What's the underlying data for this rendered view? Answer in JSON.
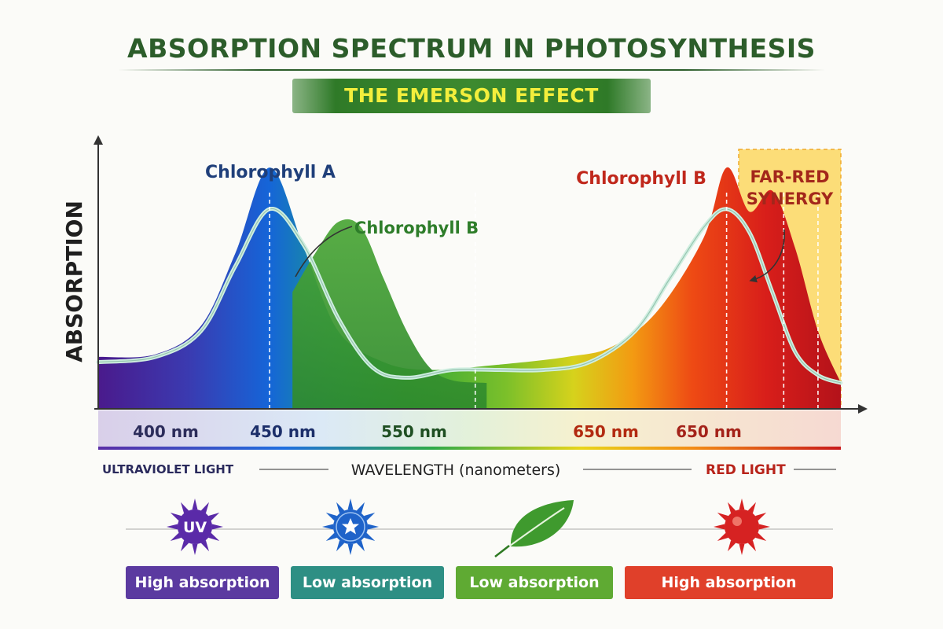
{
  "header": {
    "title": "ABSORPTION SPECTRUM IN PHOTOSYNTHESIS",
    "subtitle": "THE EMERSON EFFECT"
  },
  "chart_data": {
    "type": "area",
    "ylabel": "ABSORPTION",
    "xlabel": "WAVELENGTH (nanometers)",
    "tick_labels": [
      "400 nm",
      "450 nm",
      "550 nm",
      "650 nm",
      "650 nm"
    ],
    "x_range_nm": [
      375,
      700
    ],
    "y_range": [
      0,
      1
    ],
    "series": [
      {
        "name": "Chlorophyll A",
        "x": [
          375,
          400,
          420,
          435,
          450,
          465,
          480,
          500,
          520,
          550,
          580,
          600,
          620,
          640,
          650,
          660,
          670,
          680,
          690,
          700
        ],
        "values": [
          0.2,
          0.21,
          0.32,
          0.6,
          0.93,
          0.62,
          0.3,
          0.18,
          0.15,
          0.17,
          0.2,
          0.24,
          0.38,
          0.66,
          0.93,
          0.76,
          0.84,
          0.62,
          0.3,
          0.1
        ]
      },
      {
        "name": "Chlorophyll B",
        "x": [
          460,
          470,
          480,
          490,
          500,
          510,
          520,
          530,
          545
        ],
        "values": [
          0.45,
          0.6,
          0.72,
          0.7,
          0.5,
          0.3,
          0.16,
          0.11,
          0.1
        ]
      },
      {
        "name": "",
        "x": [
          375,
          400,
          420,
          435,
          450,
          465,
          480,
          495,
          510,
          530,
          550,
          570,
          590,
          610,
          625,
          640,
          650,
          660,
          670,
          680,
          690,
          700
        ],
        "values": [
          0.18,
          0.2,
          0.3,
          0.55,
          0.77,
          0.63,
          0.35,
          0.16,
          0.12,
          0.15,
          0.15,
          0.15,
          0.18,
          0.3,
          0.5,
          0.7,
          0.77,
          0.68,
          0.45,
          0.22,
          0.13,
          0.1
        ]
      }
    ],
    "reference_lines_nm": [
      450,
      540,
      650,
      675,
      690
    ],
    "annotations": {
      "chl_a_label": "Chlorophyll A",
      "chl_b_label": "Chlorophyll B",
      "chl_b_red_label": "Chlorophyll B",
      "far_red_line1": "FAR-RED",
      "far_red_line2": "SYNERGY"
    },
    "region_labels": {
      "left": "ULTRAVIOLET LIGHT",
      "right": "RED LIGHT"
    },
    "colors": {
      "chl_a_label": "#1f3f7a",
      "chl_b_label": "#2e7d2a",
      "chl_b_red_label": "#c0281c",
      "far_red": "#a3271b",
      "far_red_box": "#fcd34d"
    }
  },
  "legend_row": {
    "uv_icon_text": "UV",
    "badges": [
      {
        "label": "High absorption",
        "color": "#5b3aa0"
      },
      {
        "label": "Low absorption",
        "color": "#2e8f84"
      },
      {
        "label": "Low absorption",
        "color": "#5faa33"
      },
      {
        "label": "High absorption",
        "color": "#e0402a"
      }
    ],
    "icons": [
      "uv-sun-icon",
      "blue-star-sun-icon",
      "leaf-icon",
      "red-sun-icon"
    ]
  }
}
